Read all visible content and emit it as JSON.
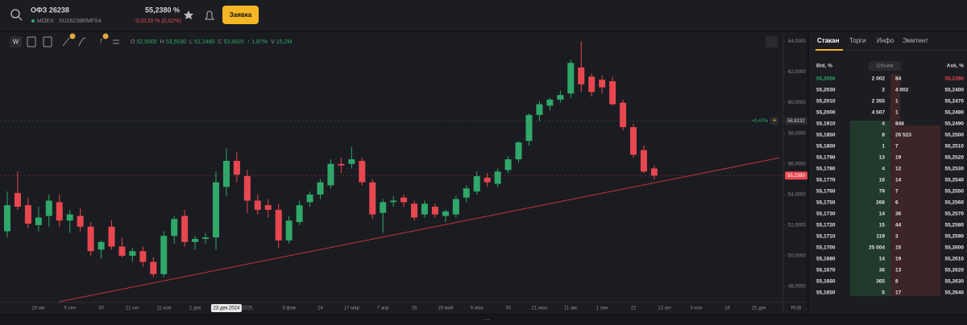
{
  "header": {
    "ticker": "ОФЗ 26238",
    "exchange": "MOEX · SU26238RMFS4",
    "price": "55,2380 %",
    "change": "-0,0120 % (0,02%)",
    "order_button": "Заявка"
  },
  "toolbar": {
    "interval": "W",
    "ohlc": [
      {
        "label": "O",
        "value": "52,5000"
      },
      {
        "label": "H",
        "value": "53,5030"
      },
      {
        "label": "L",
        "value": "51,2480"
      },
      {
        "label": "C",
        "value": "53,4820"
      }
    ],
    "change": "1,87%",
    "volume_label": "V",
    "volume": "15,2M"
  },
  "chart_data": {
    "type": "candlestick",
    "categories": [
      null,
      null,
      null,
      "19 авг",
      null,
      null,
      "9 сен",
      null,
      null,
      "30",
      null,
      null,
      "21 окт",
      null,
      null,
      "11 ноя",
      null,
      null,
      "2 дек",
      null,
      null,
      "23 дек 2024",
      null,
      "2025",
      null,
      null,
      null,
      "3 фев",
      null,
      null,
      "24",
      null,
      null,
      "17 мар",
      null,
      null,
      "7 апр",
      null,
      null,
      "28",
      null,
      null,
      "19 май",
      null,
      null,
      "9 июн",
      null,
      null,
      "30",
      null,
      null,
      "21 июл",
      null,
      null,
      "11 авг",
      null,
      null,
      "1 сен",
      null,
      null,
      "22",
      null,
      null,
      "13 окт",
      null,
      null,
      "3 ноя",
      null,
      null,
      "24",
      null,
      null,
      "15 дек"
    ],
    "open": [
      51.6,
      54.1,
      53.3,
      52.0,
      52.6,
      53.5,
      52.3,
      52.6,
      51.9,
      50.4,
      51.9,
      50.6,
      50.0,
      50.3,
      49.6,
      48.8,
      51.3,
      52.6,
      50.9,
      51.1,
      51.2,
      54.5,
      56.2,
      55.2,
      53.6,
      53.3,
      53.0,
      51.0,
      52.2,
      53.5,
      54.0,
      54.6,
      56.0,
      56.0,
      56.2,
      54.8,
      52.8,
      53.5,
      53.8,
      53.4,
      52.7,
      53.2,
      52.6,
      52.7,
      53.8,
      54.2,
      55.1,
      54.7,
      55.6,
      56.3,
      57.5,
      59.2,
      59.8,
      60.2,
      60.6,
      62.3,
      61.7,
      61.5,
      61.4,
      60.0,
      58.4,
      56.9,
      55.7,
      null,
      null,
      null,
      null,
      null,
      null,
      null,
      null,
      null,
      null
    ],
    "high": [
      54.2,
      55.5,
      53.8,
      53.2,
      54.0,
      54.0,
      53.0,
      53.1,
      52.2,
      51.0,
      52.3,
      51.2,
      50.5,
      50.6,
      49.9,
      51.6,
      52.6,
      53.0,
      51.3,
      51.5,
      55.5,
      57.0,
      56.8,
      55.6,
      54.0,
      53.7,
      53.4,
      52.6,
      53.6,
      54.2,
      55.0,
      56.3,
      56.4,
      57.1,
      56.4,
      55.0,
      53.7,
      53.9,
      54.0,
      53.6,
      53.6,
      53.4,
      53.0,
      53.9,
      54.6,
      55.5,
      55.4,
      55.7,
      56.5,
      57.5,
      59.3,
      60.1,
      60.3,
      60.8,
      62.8,
      64.0,
      61.9,
      61.8,
      61.7,
      60.2,
      58.6,
      57.2,
      55.9,
      null,
      null,
      null,
      null,
      null,
      null,
      null,
      null,
      null,
      null
    ],
    "low": [
      51.2,
      53.0,
      51.8,
      51.6,
      51.9,
      51.9,
      51.5,
      51.6,
      50.0,
      49.8,
      50.4,
      49.9,
      49.6,
      49.3,
      48.6,
      48.6,
      50.8,
      50.6,
      50.4,
      50.8,
      50.4,
      53.9,
      54.8,
      52.8,
      52.7,
      52.5,
      50.5,
      50.8,
      52.0,
      53.2,
      53.7,
      54.4,
      55.4,
      55.7,
      54.6,
      52.4,
      51.5,
      53.2,
      53.2,
      52.3,
      52.5,
      52.5,
      52.2,
      52.5,
      53.5,
      54.0,
      54.5,
      54.5,
      55.4,
      56.1,
      57.2,
      58.8,
      59.5,
      60.0,
      60.3,
      60.7,
      60.4,
      60.6,
      59.8,
      58.2,
      56.4,
      55.4,
      55.0,
      null,
      null,
      null,
      null,
      null,
      null,
      null,
      null,
      null,
      null
    ],
    "close": [
      53.3,
      53.2,
      52.1,
      52.5,
      53.6,
      52.3,
      52.7,
      51.9,
      50.3,
      50.9,
      50.6,
      50.0,
      50.3,
      49.6,
      48.8,
      51.3,
      52.4,
      50.9,
      51.1,
      51.2,
      54.8,
      56.2,
      55.3,
      53.6,
      53.0,
      53.0,
      51.0,
      52.3,
      53.3,
      54.0,
      54.8,
      56.0,
      55.9,
      56.3,
      54.8,
      52.7,
      53.5,
      53.6,
      53.5,
      52.5,
      53.4,
      52.7,
      52.9,
      53.7,
      54.4,
      55.2,
      54.8,
      55.5,
      56.3,
      57.4,
      59.2,
      59.9,
      60.2,
      60.5,
      62.6,
      61.2,
      60.7,
      61.0,
      59.9,
      58.4,
      56.6,
      55.5,
      55.238,
      null,
      null,
      null,
      null,
      null,
      null,
      null,
      null,
      null,
      null
    ],
    "up_color": "#2fa86a",
    "down_color": "#e8474f",
    "ylim": [
      47,
      64.5
    ],
    "yticks": [
      {
        "value": 48,
        "label": "48,0000"
      },
      {
        "value": 50,
        "label": "50,0000"
      },
      {
        "value": 52,
        "label": "52,0000"
      },
      {
        "value": 54,
        "label": "54,0000"
      },
      {
        "value": 56,
        "label": "56,0000"
      },
      {
        "value": 58,
        "label": "58,0000"
      },
      {
        "value": 60,
        "label": "60,0000"
      },
      {
        "value": 62,
        "label": "62,0000"
      },
      {
        "value": 64,
        "label": "64,0000"
      }
    ],
    "last_price": {
      "value": 55.238,
      "label": "55,2380"
    },
    "marker": {
      "value": 58.8132,
      "label": "58,8132",
      "change": "+0,47%"
    },
    "trendline": {
      "x": [
        5,
        74
      ],
      "y": [
        47.0,
        56.4
      ],
      "color": "#c0353b"
    },
    "currency": "RUB"
  },
  "order_book": {
    "tabs": [
      "Стакан",
      "Торги",
      "Инфо",
      "Эмитент"
    ],
    "columns": [
      "Bid, %",
      "Объём",
      "Ask, %"
    ],
    "rows": [
      [
        "55,2050",
        "2 002",
        "84",
        "55,2380"
      ],
      [
        "55,2030",
        "2",
        "4 002",
        "55,2400"
      ],
      [
        "55,2010",
        "2 355",
        "1",
        "55,2470"
      ],
      [
        "55,2000",
        "4 507",
        "1",
        "55,2480"
      ],
      [
        "55,1910",
        "4",
        "848",
        "55,2490"
      ],
      [
        "55,1850",
        "8",
        "26 523",
        "55,2500"
      ],
      [
        "55,1800",
        "1",
        "7",
        "55,2510"
      ],
      [
        "55,1790",
        "13",
        "19",
        "55,2520"
      ],
      [
        "55,1780",
        "4",
        "12",
        "55,2530"
      ],
      [
        "55,1770",
        "16",
        "14",
        "55,2540"
      ],
      [
        "55,1760",
        "79",
        "7",
        "55,2550"
      ],
      [
        "55,1750",
        "266",
        "6",
        "55,2560"
      ],
      [
        "55,1730",
        "14",
        "36",
        "55,2570"
      ],
      [
        "55,1720",
        "15",
        "44",
        "55,2580"
      ],
      [
        "55,1710",
        "119",
        "3",
        "55,2590"
      ],
      [
        "55,1700",
        "25 004",
        "15",
        "55,2600"
      ],
      [
        "55,1680",
        "14",
        "19",
        "55,2610"
      ],
      [
        "55,1670",
        "36",
        "13",
        "55,2620"
      ],
      [
        "55,1660",
        "365",
        "8",
        "55,2630"
      ],
      [
        "55,1650",
        "5",
        "17",
        "55,2640"
      ]
    ]
  }
}
